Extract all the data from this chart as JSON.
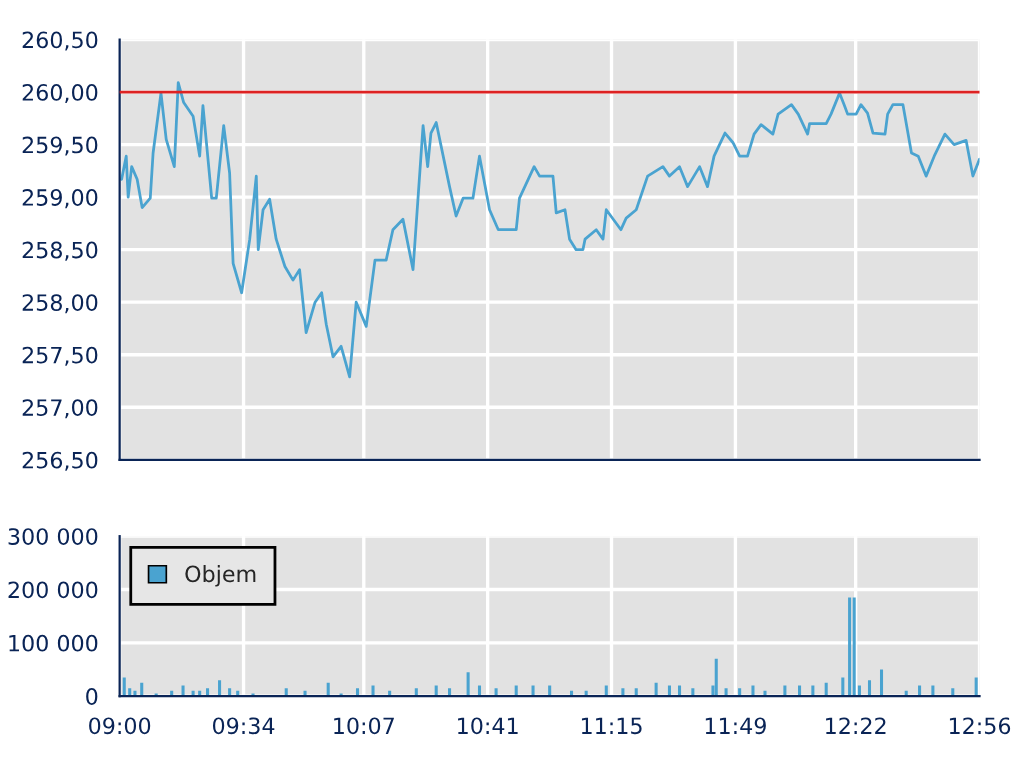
{
  "chart_data": [
    {
      "type": "line",
      "x": [
        9.009,
        9.03,
        9.039,
        9.055,
        9.08,
        9.103,
        9.14,
        9.153,
        9.189,
        9.213,
        9.25,
        9.268,
        9.293,
        9.336,
        9.366,
        9.381,
        9.421,
        9.442,
        9.476,
        9.503,
        9.519,
        9.558,
        9.595,
        9.625,
        9.634,
        9.656,
        9.686,
        9.716,
        9.756,
        9.793,
        9.823,
        9.853,
        9.894,
        9.924,
        9.945,
        9.976,
        10.013,
        10.052,
        10.082,
        10.128,
        10.168,
        10.219,
        10.25,
        10.296,
        10.342,
        10.388,
        10.409,
        10.424,
        10.448,
        10.509,
        10.539,
        10.571,
        10.616,
        10.646,
        10.692,
        10.732,
        10.814,
        10.829,
        10.896,
        10.921,
        10.982,
        10.997,
        11.037,
        11.058,
        11.088,
        11.119,
        11.129,
        11.18,
        11.211,
        11.226,
        11.293,
        11.317,
        11.363,
        11.415,
        11.485,
        11.515,
        11.561,
        11.598,
        11.653,
        11.689,
        11.719,
        11.769,
        11.805,
        11.836,
        11.872,
        11.902,
        11.934,
        11.988,
        12.012,
        12.073,
        12.104,
        12.147,
        12.156,
        12.232,
        12.254,
        12.293,
        12.314,
        12.33,
        12.369,
        12.391,
        12.421,
        12.446,
        12.501,
        12.513,
        12.537,
        12.583,
        12.622,
        12.653,
        12.689,
        12.726,
        12.775,
        12.817,
        12.872,
        12.903,
        12.933
      ],
      "series": [
        {
          "color": "#4aa3d0",
          "values": [
            259.17,
            259.39,
            259.0,
            259.29,
            259.17,
            258.9,
            258.99,
            259.42,
            259.99,
            259.55,
            259.29,
            260.09,
            259.9,
            259.77,
            259.39,
            259.87,
            258.99,
            258.99,
            259.68,
            259.23,
            258.37,
            258.09,
            258.6,
            259.2,
            258.5,
            258.88,
            258.98,
            258.6,
            258.34,
            258.21,
            258.31,
            257.71,
            258.0,
            258.09,
            257.79,
            257.48,
            257.58,
            257.29,
            258.0,
            257.77,
            258.4,
            258.4,
            258.69,
            258.79,
            258.31,
            259.68,
            259.29,
            259.61,
            259.71,
            259.1,
            258.82,
            258.99,
            258.99,
            259.39,
            258.88,
            258.69,
            258.69,
            258.99,
            259.29,
            259.2,
            259.2,
            258.85,
            258.88,
            258.6,
            258.5,
            258.5,
            258.6,
            258.69,
            258.6,
            258.88,
            258.69,
            258.8,
            258.88,
            259.2,
            259.29,
            259.2,
            259.29,
            259.1,
            259.29,
            259.1,
            259.39,
            259.61,
            259.52,
            259.39,
            259.39,
            259.6,
            259.69,
            259.6,
            259.79,
            259.88,
            259.79,
            259.6,
            259.7,
            259.7,
            259.79,
            259.99,
            259.88,
            259.79,
            259.79,
            259.88,
            259.8,
            259.61,
            259.6,
            259.79,
            259.88,
            259.88,
            259.42,
            259.39,
            259.2,
            259.39,
            259.6,
            259.5,
            259.54,
            259.2,
            259.36
          ]
        }
      ],
      "xlim": [
        9.0,
        12.9333
      ],
      "xticks": [
        {
          "value": 9.0,
          "label": null
        },
        {
          "value": 9.5667,
          "label": null
        },
        {
          "value": 10.1167,
          "label": null
        },
        {
          "value": 10.6833,
          "label": null
        },
        {
          "value": 11.25,
          "label": null
        },
        {
          "value": 11.8167,
          "label": null
        },
        {
          "value": 12.3667,
          "label": null
        },
        {
          "value": 12.9333,
          "label": null
        }
      ],
      "ylim": [
        256.5,
        260.5
      ],
      "yticks": [
        {
          "value": 256.5,
          "label": "256,50"
        },
        {
          "value": 257.0,
          "label": "257,00"
        },
        {
          "value": 257.5,
          "label": "257,50"
        },
        {
          "value": 258.0,
          "label": "258,00"
        },
        {
          "value": 258.5,
          "label": "258,50"
        },
        {
          "value": 259.0,
          "label": "259,00"
        },
        {
          "value": 259.5,
          "label": "259,50"
        },
        {
          "value": 260.0,
          "label": "260,00"
        },
        {
          "value": 260.5,
          "label": "260,50"
        }
      ],
      "ref_lines": [
        {
          "axis": "y",
          "value": 260.0,
          "color": "#dd2222"
        }
      ],
      "tick_labels": "y",
      "grid": true
    },
    {
      "type": "bar",
      "x": [
        9.021,
        9.046,
        9.07,
        9.101,
        9.167,
        9.238,
        9.29,
        9.336,
        9.366,
        9.402,
        9.457,
        9.503,
        9.54,
        9.61,
        9.762,
        9.848,
        9.954,
        10.013,
        10.088,
        10.159,
        10.235,
        10.357,
        10.448,
        10.509,
        10.594,
        10.646,
        10.722,
        10.814,
        10.891,
        10.967,
        11.067,
        11.134,
        11.226,
        11.302,
        11.363,
        11.454,
        11.515,
        11.561,
        11.622,
        11.714,
        11.729,
        11.774,
        11.836,
        11.897,
        11.952,
        12.043,
        12.11,
        12.171,
        12.232,
        12.308,
        12.339,
        12.36,
        12.384,
        12.43,
        12.485,
        12.598,
        12.659,
        12.72,
        12.811,
        12.918
      ],
      "series": [
        {
          "name": "Objem",
          "color": "#4aa3d0",
          "values": [
            35000,
            15000,
            10000,
            25000,
            5000,
            10000,
            20000,
            10000,
            10000,
            15000,
            30000,
            15000,
            10000,
            5000,
            15000,
            10000,
            25000,
            5000,
            15000,
            20000,
            10000,
            15000,
            20000,
            15000,
            45000,
            20000,
            15000,
            20000,
            20000,
            20000,
            10000,
            10000,
            20000,
            15000,
            15000,
            25000,
            20000,
            20000,
            15000,
            20000,
            70000,
            15000,
            15000,
            20000,
            10000,
            20000,
            20000,
            20000,
            25000,
            35000,
            185000,
            185000,
            20000,
            30000,
            50000,
            10000,
            20000,
            20000,
            15000,
            35000
          ]
        }
      ],
      "xlim": [
        9.0,
        12.9333
      ],
      "xticks": [
        {
          "value": 9.0,
          "label": "09:00"
        },
        {
          "value": 9.5667,
          "label": "09:34"
        },
        {
          "value": 10.1167,
          "label": "10:07"
        },
        {
          "value": 10.6833,
          "label": "10:41"
        },
        {
          "value": 11.25,
          "label": "11:15"
        },
        {
          "value": 11.8167,
          "label": "11:49"
        },
        {
          "value": 12.3667,
          "label": "12:22"
        },
        {
          "value": 12.9333,
          "label": "12:56"
        }
      ],
      "ylim": [
        0,
        300000
      ],
      "yticks": [
        {
          "value": 0,
          "label": "0"
        },
        {
          "value": 100000,
          "label": "100 000"
        },
        {
          "value": 200000,
          "label": "200 000"
        },
        {
          "value": 300000,
          "label": "300 000"
        }
      ],
      "legend": "top left",
      "grid": true
    }
  ]
}
